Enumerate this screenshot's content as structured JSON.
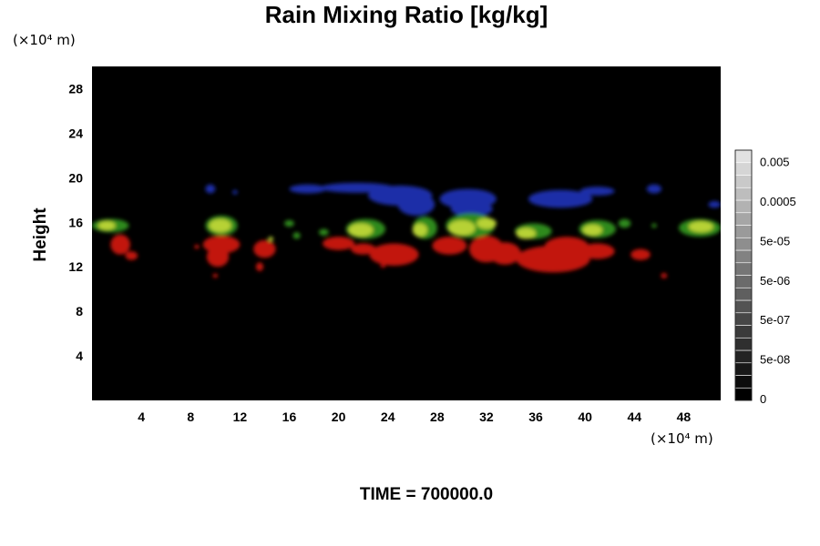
{
  "chart_data": {
    "type": "heatmap",
    "title": "Rain Mixing Ratio [kg/kg]",
    "ylabel": "Height",
    "xlabel": "",
    "y_units": "(×10⁴ m)",
    "x_units": "(×10⁴ m)",
    "xlim": [
      0,
      51
    ],
    "ylim": [
      0,
      30
    ],
    "x_ticks": [
      "4",
      "8",
      "12",
      "16",
      "20",
      "24",
      "28",
      "32",
      "36",
      "40",
      "44",
      "48"
    ],
    "y_ticks": [
      "4",
      "8",
      "12",
      "16",
      "20",
      "24",
      "28"
    ],
    "colorbar": {
      "labels": [
        "0",
        "5e-08",
        "5e-07",
        "5e-06",
        "5e-05",
        "0.0005",
        "0.005"
      ],
      "levels": 20
    },
    "background_color": "#000000",
    "colors": {
      "blue": "#1f2fa8",
      "green": "#2f8a1c",
      "yellowgreen": "#b7d235",
      "red": "#c2120e"
    },
    "regions": [
      {
        "color": "blue",
        "x": 9.6,
        "y": 19.0,
        "rx": 0.4,
        "ry": 0.4
      },
      {
        "color": "blue",
        "x": 11.6,
        "y": 18.7,
        "rx": 0.2,
        "ry": 0.2
      },
      {
        "color": "blue",
        "x": 17.5,
        "y": 19.0,
        "rx": 1.5,
        "ry": 0.4
      },
      {
        "color": "blue",
        "x": 21.5,
        "y": 19.1,
        "rx": 3.0,
        "ry": 0.45
      },
      {
        "color": "blue",
        "x": 25.0,
        "y": 18.4,
        "rx": 2.6,
        "ry": 0.9
      },
      {
        "color": "blue",
        "x": 26.3,
        "y": 17.6,
        "rx": 1.5,
        "ry": 1.0
      },
      {
        "color": "blue",
        "x": 30.5,
        "y": 18.1,
        "rx": 2.3,
        "ry": 0.9
      },
      {
        "color": "blue",
        "x": 30.8,
        "y": 17.2,
        "rx": 1.7,
        "ry": 0.7
      },
      {
        "color": "blue",
        "x": 38.0,
        "y": 18.1,
        "rx": 2.6,
        "ry": 0.8
      },
      {
        "color": "blue",
        "x": 41.0,
        "y": 18.8,
        "rx": 1.4,
        "ry": 0.4
      },
      {
        "color": "blue",
        "x": 45.6,
        "y": 19.0,
        "rx": 0.6,
        "ry": 0.4
      },
      {
        "color": "blue",
        "x": 50.5,
        "y": 17.6,
        "rx": 0.5,
        "ry": 0.3
      },
      {
        "color": "red",
        "x": 2.3,
        "y": 14.0,
        "rx": 0.8,
        "ry": 0.9
      },
      {
        "color": "red",
        "x": 3.2,
        "y": 13.0,
        "rx": 0.5,
        "ry": 0.4
      },
      {
        "color": "red",
        "x": 10.5,
        "y": 14.0,
        "rx": 1.5,
        "ry": 0.8
      },
      {
        "color": "red",
        "x": 10.2,
        "y": 12.9,
        "rx": 0.9,
        "ry": 0.9
      },
      {
        "color": "red",
        "x": 8.5,
        "y": 13.8,
        "rx": 0.2,
        "ry": 0.2
      },
      {
        "color": "red",
        "x": 10.0,
        "y": 11.2,
        "rx": 0.2,
        "ry": 0.2
      },
      {
        "color": "red",
        "x": 14.0,
        "y": 13.6,
        "rx": 0.9,
        "ry": 0.8
      },
      {
        "color": "red",
        "x": 13.6,
        "y": 12.0,
        "rx": 0.3,
        "ry": 0.4
      },
      {
        "color": "red",
        "x": 20.0,
        "y": 14.1,
        "rx": 1.3,
        "ry": 0.6
      },
      {
        "color": "red",
        "x": 24.5,
        "y": 13.1,
        "rx": 2.0,
        "ry": 1.0
      },
      {
        "color": "red",
        "x": 22.0,
        "y": 13.6,
        "rx": 1.0,
        "ry": 0.5
      },
      {
        "color": "red",
        "x": 29.0,
        "y": 13.9,
        "rx": 1.4,
        "ry": 0.8
      },
      {
        "color": "red",
        "x": 32.0,
        "y": 13.6,
        "rx": 1.4,
        "ry": 1.2
      },
      {
        "color": "red",
        "x": 33.5,
        "y": 13.2,
        "rx": 1.3,
        "ry": 1.0
      },
      {
        "color": "red",
        "x": 37.4,
        "y": 12.7,
        "rx": 3.0,
        "ry": 1.2
      },
      {
        "color": "red",
        "x": 38.5,
        "y": 13.8,
        "rx": 1.8,
        "ry": 0.9
      },
      {
        "color": "red",
        "x": 41.0,
        "y": 13.4,
        "rx": 1.4,
        "ry": 0.7
      },
      {
        "color": "red",
        "x": 44.5,
        "y": 13.1,
        "rx": 0.8,
        "ry": 0.5
      },
      {
        "color": "red",
        "x": 46.4,
        "y": 11.2,
        "rx": 0.25,
        "ry": 0.25
      },
      {
        "color": "red",
        "x": 23.6,
        "y": 12.1,
        "rx": 0.2,
        "ry": 0.2
      },
      {
        "color": "green",
        "x": 1.5,
        "y": 15.7,
        "rx": 1.5,
        "ry": 0.6
      },
      {
        "color": "yellowgreen",
        "x": 1.2,
        "y": 15.7,
        "rx": 0.7,
        "ry": 0.4
      },
      {
        "color": "green",
        "x": 10.5,
        "y": 15.7,
        "rx": 1.3,
        "ry": 0.9
      },
      {
        "color": "yellowgreen",
        "x": 10.4,
        "y": 15.7,
        "rx": 0.9,
        "ry": 0.6
      },
      {
        "color": "green",
        "x": 16.0,
        "y": 15.9,
        "rx": 0.4,
        "ry": 0.3
      },
      {
        "color": "green",
        "x": 16.6,
        "y": 14.8,
        "rx": 0.3,
        "ry": 0.3
      },
      {
        "color": "green",
        "x": 18.8,
        "y": 15.1,
        "rx": 0.4,
        "ry": 0.3
      },
      {
        "color": "green",
        "x": 22.2,
        "y": 15.4,
        "rx": 1.6,
        "ry": 0.9
      },
      {
        "color": "yellowgreen",
        "x": 21.8,
        "y": 15.3,
        "rx": 1.0,
        "ry": 0.6
      },
      {
        "color": "green",
        "x": 27.0,
        "y": 15.5,
        "rx": 1.0,
        "ry": 1.0
      },
      {
        "color": "yellowgreen",
        "x": 26.6,
        "y": 15.3,
        "rx": 0.6,
        "ry": 0.6
      },
      {
        "color": "green",
        "x": 30.7,
        "y": 15.7,
        "rx": 2.0,
        "ry": 1.1
      },
      {
        "color": "yellowgreen",
        "x": 30.0,
        "y": 15.5,
        "rx": 1.1,
        "ry": 0.7
      },
      {
        "color": "yellowgreen",
        "x": 32.0,
        "y": 15.9,
        "rx": 0.8,
        "ry": 0.5
      },
      {
        "color": "green",
        "x": 35.8,
        "y": 15.2,
        "rx": 1.5,
        "ry": 0.7
      },
      {
        "color": "yellowgreen",
        "x": 35.2,
        "y": 15.0,
        "rx": 0.8,
        "ry": 0.5
      },
      {
        "color": "green",
        "x": 41.0,
        "y": 15.4,
        "rx": 1.5,
        "ry": 0.8
      },
      {
        "color": "yellowgreen",
        "x": 40.6,
        "y": 15.3,
        "rx": 0.8,
        "ry": 0.5
      },
      {
        "color": "green",
        "x": 43.2,
        "y": 15.9,
        "rx": 0.5,
        "ry": 0.4
      },
      {
        "color": "green",
        "x": 45.6,
        "y": 15.7,
        "rx": 0.2,
        "ry": 0.2
      },
      {
        "color": "green",
        "x": 49.3,
        "y": 15.5,
        "rx": 1.7,
        "ry": 0.8
      },
      {
        "color": "yellowgreen",
        "x": 49.4,
        "y": 15.6,
        "rx": 1.0,
        "ry": 0.5
      },
      {
        "color": "yellowgreen",
        "x": 14.5,
        "y": 14.5,
        "rx": 0.2,
        "ry": 0.2
      }
    ]
  },
  "footer": {
    "time_label": "TIME = 700000.0"
  }
}
